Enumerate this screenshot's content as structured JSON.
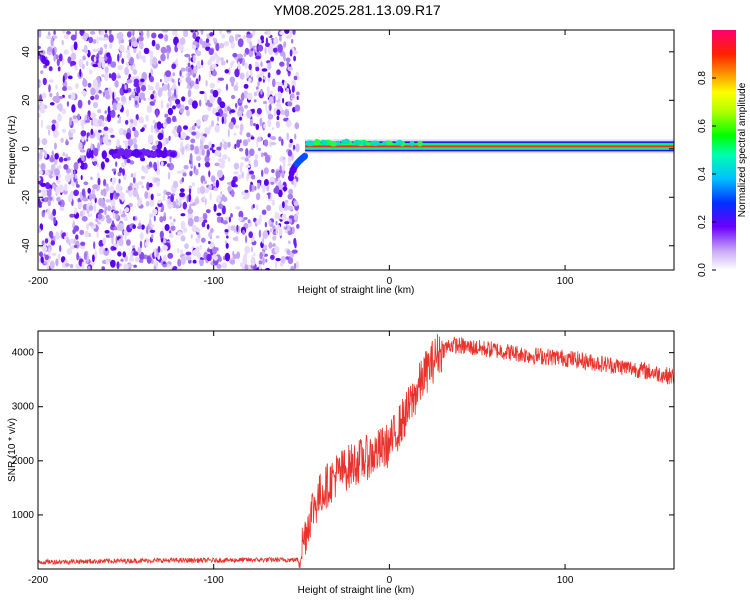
{
  "title": "YM08.2025.281.13.09.R17",
  "chart_data": [
    {
      "type": "heatmap",
      "xlabel": "Height of straight line (km)",
      "ylabel": "Frequency (Hz)",
      "xlim": [
        -200,
        162
      ],
      "ylim": [
        -50,
        49
      ],
      "xticks": [
        -200,
        -100,
        0,
        100
      ],
      "yticks": [
        -40,
        -20,
        0,
        20,
        40
      ],
      "colorbar": {
        "label": "Normalized spectral amplitude",
        "range": [
          0,
          1
        ],
        "ticks": [
          "0.0",
          "0.2",
          "0.4",
          "0.6",
          "0.8"
        ]
      },
      "features": {
        "noise_region_x": [
          -200,
          -52
        ],
        "weak_signal_band": {
          "x": [
            -160,
            -122
          ],
          "frequency": -2
        },
        "rising_trace": {
          "x": [
            -56,
            -48
          ],
          "frequency_start": -12,
          "frequency_end": -3
        },
        "strong_signal_band": {
          "x": [
            -48,
            162
          ],
          "frequency": 1
        }
      }
    },
    {
      "type": "line",
      "xlabel": "Height of straight line (km)",
      "ylabel": "SNR (10 * v/v)",
      "xlim": [
        -200,
        162
      ],
      "ylim": [
        0,
        4400
      ],
      "xticks": [
        -200,
        -100,
        0,
        100
      ],
      "yticks": [
        1000,
        2000,
        3000,
        4000
      ],
      "series": [
        {
          "color": "#e8332c",
          "x": [
            -200,
            -175,
            -150,
            -125,
            -100,
            -75,
            -52,
            -44,
            -38,
            -30,
            -20,
            -10,
            0,
            10,
            20,
            28,
            35,
            45,
            60,
            80,
            100,
            120,
            140,
            162
          ],
          "values": [
            130,
            140,
            150,
            160,
            160,
            170,
            170,
            1100,
            1450,
            1750,
            1950,
            2100,
            2300,
            2900,
            3600,
            4000,
            4150,
            4100,
            4050,
            3950,
            3900,
            3800,
            3700,
            3550
          ]
        }
      ]
    }
  ]
}
